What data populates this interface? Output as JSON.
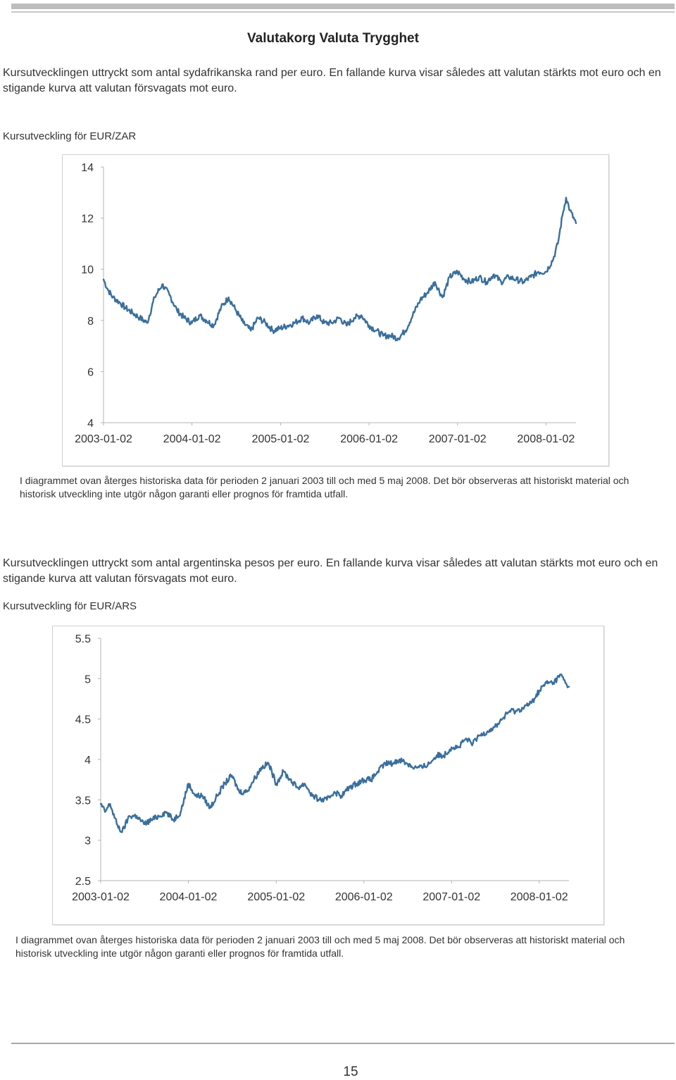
{
  "page": {
    "title": "Valutakorg Valuta Trygghet",
    "page_number": "15"
  },
  "section1": {
    "intro": "Kursutvecklingen uttryckt som antal sydafrikanska rand per euro. En fallande kurva visar således att valutan stärkts mot euro och en stigande kurva att valutan försvagats mot euro.",
    "chart_title": "Kursutveckling för EUR/ZAR",
    "note": "I diagrammet ovan återges historiska data för perioden 2 januari 2003 till och med 5 maj 2008. Det bör observeras att historiskt material och historisk utveckling inte utgör någon garanti eller prognos för framtida utfall."
  },
  "section2": {
    "intro": "Kursutvecklingen uttryckt som antal argentinska pesos per euro. En fallande kurva visar således att valutan stärkts mot euro och en stigande kurva att valutan försvagats mot euro.",
    "chart_title": "Kursutveckling för EUR/ARS",
    "note": "I diagrammet ovan återges historiska data för perioden 2 januari 2003 till och med 5 maj 2008. Det bör observeras att historiskt material och historisk utveckling inte utgör någon garanti eller prognos för framtida utfall."
  },
  "colors": {
    "line": "#3a6f9c",
    "axis": "#aaaaaa",
    "frame": "#cfcfcf"
  },
  "chart_data": [
    {
      "type": "line",
      "title": "Kursutveckling för EUR/ZAR",
      "xlabel": "",
      "ylabel": "",
      "ylim": [
        4,
        14
      ],
      "yticks": [
        "14",
        "12",
        "10",
        "8",
        "6",
        "4"
      ],
      "xticks": [
        "2003-01-02",
        "2004-01-02",
        "2005-01-02",
        "2006-01-02",
        "2007-01-02",
        "2008-01-02"
      ],
      "grid": false,
      "series": [
        {
          "x": [
            "2003-01-02",
            "2003-01-20",
            "2003-02-10",
            "2003-03-10",
            "2003-04-01",
            "2003-05-01",
            "2003-06-01",
            "2003-07-01",
            "2003-08-01",
            "2003-09-01",
            "2003-10-01",
            "2003-11-01",
            "2003-12-01",
            "2004-01-02",
            "2004-02-01",
            "2004-03-01",
            "2004-04-01",
            "2004-05-01",
            "2004-06-01",
            "2004-07-01",
            "2004-08-01",
            "2004-09-01",
            "2004-10-01",
            "2004-11-01",
            "2004-12-01",
            "2005-01-02",
            "2005-02-01",
            "2005-03-01",
            "2005-04-01",
            "2005-05-01",
            "2005-06-01",
            "2005-07-01",
            "2005-08-01",
            "2005-09-01",
            "2005-10-01",
            "2005-11-01",
            "2005-12-01",
            "2006-01-02",
            "2006-02-01",
            "2006-03-01",
            "2006-04-01",
            "2006-05-01",
            "2006-06-01",
            "2006-07-01",
            "2006-08-01",
            "2006-09-01",
            "2006-10-01",
            "2006-11-01",
            "2006-12-01",
            "2007-01-02",
            "2007-02-01",
            "2007-03-01",
            "2007-04-01",
            "2007-05-01",
            "2007-06-01",
            "2007-07-01",
            "2007-08-01",
            "2007-09-01",
            "2007-10-01",
            "2007-11-01",
            "2007-12-01",
            "2008-01-02",
            "2008-02-01",
            "2008-02-20",
            "2008-03-10",
            "2008-03-25",
            "2008-04-10",
            "2008-05-05"
          ],
          "values": [
            9.6,
            9.2,
            8.9,
            8.7,
            8.5,
            8.3,
            8.1,
            7.9,
            8.9,
            9.4,
            9.0,
            8.4,
            8.1,
            7.9,
            8.2,
            8.0,
            7.8,
            8.5,
            8.9,
            8.4,
            7.9,
            7.6,
            8.1,
            7.9,
            7.6,
            7.7,
            7.8,
            7.9,
            8.1,
            7.9,
            8.2,
            7.9,
            7.9,
            8.1,
            7.8,
            8.1,
            8.2,
            7.8,
            7.6,
            7.4,
            7.4,
            7.3,
            7.6,
            8.2,
            8.8,
            9.1,
            9.5,
            8.9,
            9.7,
            9.9,
            9.6,
            9.5,
            9.7,
            9.5,
            9.8,
            9.5,
            9.7,
            9.6,
            9.5,
            9.7,
            9.9,
            9.9,
            10.4,
            11.0,
            12.1,
            12.8,
            12.3,
            11.8
          ]
        }
      ]
    },
    {
      "type": "line",
      "title": "Kursutveckling för EUR/ARS",
      "xlabel": "",
      "ylabel": "",
      "ylim": [
        2.5,
        5.5
      ],
      "yticks": [
        "5.5",
        "5",
        "4.5",
        "4",
        "3.5",
        "3",
        "2.5"
      ],
      "xticks": [
        "2003-01-02",
        "2004-01-02",
        "2005-01-02",
        "2006-01-02",
        "2007-01-02",
        "2008-01-02"
      ],
      "grid": false,
      "series": [
        {
          "x": [
            "2003-01-02",
            "2003-01-20",
            "2003-02-10",
            "2003-03-10",
            "2003-04-01",
            "2003-05-01",
            "2003-06-01",
            "2003-07-01",
            "2003-08-01",
            "2003-09-01",
            "2003-10-01",
            "2003-11-01",
            "2003-12-01",
            "2004-01-02",
            "2004-02-01",
            "2004-03-01",
            "2004-04-01",
            "2004-05-01",
            "2004-06-01",
            "2004-07-01",
            "2004-08-01",
            "2004-09-01",
            "2004-10-01",
            "2004-11-01",
            "2004-12-01",
            "2005-01-02",
            "2005-02-01",
            "2005-03-01",
            "2005-04-01",
            "2005-05-01",
            "2005-06-01",
            "2005-07-01",
            "2005-08-01",
            "2005-09-01",
            "2005-10-01",
            "2005-11-01",
            "2005-12-01",
            "2006-01-02",
            "2006-02-01",
            "2006-03-01",
            "2006-04-01",
            "2006-05-01",
            "2006-06-01",
            "2006-07-01",
            "2006-08-01",
            "2006-09-01",
            "2006-10-01",
            "2006-11-01",
            "2006-12-01",
            "2007-01-02",
            "2007-02-01",
            "2007-03-01",
            "2007-04-01",
            "2007-05-01",
            "2007-06-01",
            "2007-07-01",
            "2007-08-01",
            "2007-09-01",
            "2007-10-01",
            "2007-11-01",
            "2007-12-01",
            "2008-01-02",
            "2008-02-01",
            "2008-03-01",
            "2008-04-01",
            "2008-04-20",
            "2008-05-05"
          ],
          "values": [
            3.45,
            3.35,
            3.45,
            3.2,
            3.1,
            3.3,
            3.3,
            3.2,
            3.25,
            3.3,
            3.35,
            3.25,
            3.35,
            3.7,
            3.55,
            3.55,
            3.4,
            3.55,
            3.7,
            3.8,
            3.6,
            3.6,
            3.75,
            3.9,
            3.95,
            3.7,
            3.85,
            3.75,
            3.65,
            3.7,
            3.55,
            3.5,
            3.5,
            3.6,
            3.55,
            3.65,
            3.7,
            3.75,
            3.75,
            3.85,
            3.95,
            3.95,
            4.0,
            3.95,
            3.9,
            3.9,
            3.95,
            4.05,
            4.05,
            4.15,
            4.15,
            4.25,
            4.2,
            4.3,
            4.35,
            4.4,
            4.5,
            4.6,
            4.6,
            4.65,
            4.7,
            4.85,
            4.95,
            4.95,
            5.05,
            4.95,
            4.9
          ]
        }
      ]
    }
  ]
}
